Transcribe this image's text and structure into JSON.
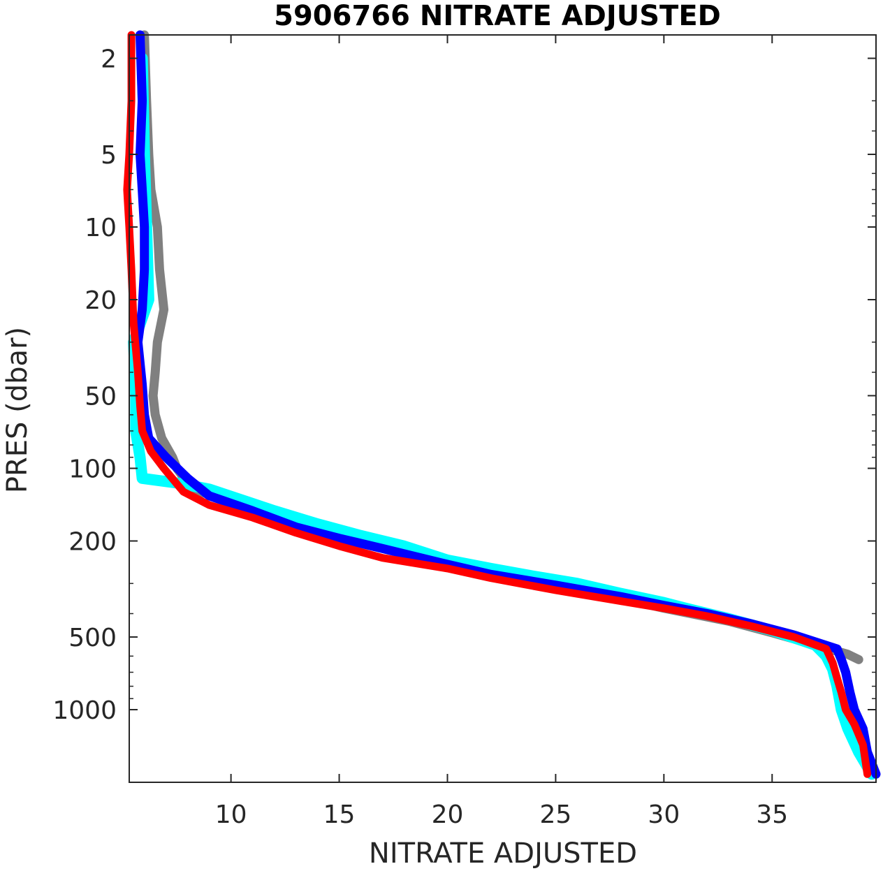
{
  "chart_data": {
    "type": "line",
    "title": "5906766  NITRATE ADJUSTED",
    "xlabel": "NITRATE ADJUSTED",
    "ylabel": "PRES (dbar)",
    "x_ticks": [
      "10",
      "15",
      "20",
      "25",
      "30",
      "35"
    ],
    "y_ticks": [
      "2",
      "5",
      "10",
      "20",
      "50",
      "100",
      "200",
      "500",
      "1000"
    ],
    "x_lim": [
      5.3,
      39.8
    ],
    "y_lim": [
      1.6,
      2000
    ],
    "y_scale": "log",
    "y_reversed": true,
    "grid": false,
    "legend": "none",
    "colors": {
      "gray": "#808080",
      "cyan": "#00ffff",
      "blue": "#0000ff",
      "red": "#ff0000",
      "axis": "#262626"
    },
    "series": [
      {
        "color": "#808080",
        "points": [
          [
            6.0,
            1.6
          ],
          [
            6.1,
            3
          ],
          [
            6.2,
            5
          ],
          [
            6.3,
            7
          ],
          [
            6.6,
            10
          ],
          [
            6.7,
            15
          ],
          [
            6.9,
            22
          ],
          [
            6.6,
            30
          ],
          [
            6.5,
            40
          ],
          [
            6.4,
            50
          ],
          [
            6.5,
            60
          ],
          [
            6.8,
            75
          ],
          [
            7.3,
            90
          ],
          [
            7.5,
            100
          ],
          [
            8.0,
            115
          ],
          [
            8.5,
            125
          ],
          [
            10.0,
            135
          ],
          [
            12.0,
            155
          ],
          [
            13.0,
            165
          ],
          [
            15.0,
            180
          ],
          [
            16.5,
            200
          ],
          [
            20.0,
            240
          ],
          [
            25.0,
            300
          ],
          [
            30.0,
            380
          ],
          [
            33.0,
            430
          ],
          [
            35.0,
            480
          ],
          [
            37.0,
            540
          ],
          [
            38.5,
            590
          ],
          [
            39.0,
            620
          ]
        ]
      },
      {
        "color": "#00ffff",
        "points": [
          [
            5.9,
            2
          ],
          [
            6.0,
            5
          ],
          [
            6.1,
            10
          ],
          [
            6.2,
            20
          ],
          [
            5.5,
            30
          ],
          [
            5.6,
            50
          ],
          [
            5.6,
            70
          ],
          [
            5.8,
            90
          ],
          [
            5.9,
            110
          ],
          [
            7.5,
            115
          ],
          [
            9.0,
            122
          ],
          [
            11.0,
            140
          ],
          [
            12.0,
            150
          ],
          [
            14.0,
            170
          ],
          [
            16.0,
            190
          ],
          [
            18.0,
            210
          ],
          [
            20.0,
            240
          ],
          [
            22.0,
            260
          ],
          [
            24.0,
            280
          ],
          [
            26.0,
            300
          ],
          [
            28.0,
            330
          ],
          [
            30.0,
            360
          ],
          [
            31.0,
            380
          ],
          [
            33.0,
            420
          ],
          [
            35.0,
            470
          ],
          [
            37.0,
            540
          ],
          [
            37.5,
            600
          ],
          [
            37.8,
            680
          ],
          [
            38.0,
            800
          ],
          [
            38.2,
            1000
          ],
          [
            38.5,
            1200
          ],
          [
            39.0,
            1500
          ],
          [
            39.6,
            1850
          ]
        ]
      },
      {
        "color": "#0000ff",
        "points": [
          [
            5.8,
            1.6
          ],
          [
            5.9,
            3
          ],
          [
            5.8,
            5
          ],
          [
            5.9,
            7
          ],
          [
            6.0,
            10
          ],
          [
            6.0,
            15
          ],
          [
            5.9,
            22
          ],
          [
            5.7,
            30
          ],
          [
            5.9,
            45
          ],
          [
            6.0,
            60
          ],
          [
            6.2,
            75
          ],
          [
            7.0,
            90
          ],
          [
            8.0,
            110
          ],
          [
            9.0,
            130
          ],
          [
            11.0,
            150
          ],
          [
            13.0,
            175
          ],
          [
            15.0,
            195
          ],
          [
            17.0,
            215
          ],
          [
            20.0,
            250
          ],
          [
            22.0,
            275
          ],
          [
            25.0,
            305
          ],
          [
            28.0,
            340
          ],
          [
            30.0,
            370
          ],
          [
            32.0,
            400
          ],
          [
            34.0,
            440
          ],
          [
            36.0,
            490
          ],
          [
            38.0,
            560
          ],
          [
            38.2,
            620
          ],
          [
            38.4,
            700
          ],
          [
            38.6,
            850
          ],
          [
            38.8,
            1000
          ],
          [
            39.2,
            1200
          ],
          [
            39.4,
            1500
          ],
          [
            39.8,
            1850
          ]
        ]
      },
      {
        "color": "#ff0000",
        "points": [
          [
            5.4,
            1.6
          ],
          [
            5.4,
            3
          ],
          [
            5.3,
            5
          ],
          [
            5.2,
            7
          ],
          [
            5.3,
            10
          ],
          [
            5.4,
            15
          ],
          [
            5.5,
            25
          ],
          [
            5.7,
            40
          ],
          [
            5.8,
            55
          ],
          [
            5.9,
            70
          ],
          [
            6.3,
            85
          ],
          [
            6.9,
            100
          ],
          [
            7.8,
            125
          ],
          [
            9.0,
            142
          ],
          [
            11.0,
            160
          ],
          [
            13.0,
            185
          ],
          [
            15.0,
            210
          ],
          [
            17.0,
            235
          ],
          [
            20.0,
            260
          ],
          [
            22.0,
            285
          ],
          [
            25.0,
            320
          ],
          [
            28.0,
            355
          ],
          [
            30.0,
            380
          ],
          [
            32.0,
            410
          ],
          [
            34.0,
            450
          ],
          [
            36.0,
            500
          ],
          [
            37.5,
            560
          ],
          [
            37.8,
            640
          ],
          [
            38.0,
            740
          ],
          [
            38.2,
            850
          ],
          [
            38.4,
            1000
          ],
          [
            38.8,
            1150
          ],
          [
            39.2,
            1400
          ],
          [
            39.4,
            1850
          ]
        ]
      }
    ]
  }
}
